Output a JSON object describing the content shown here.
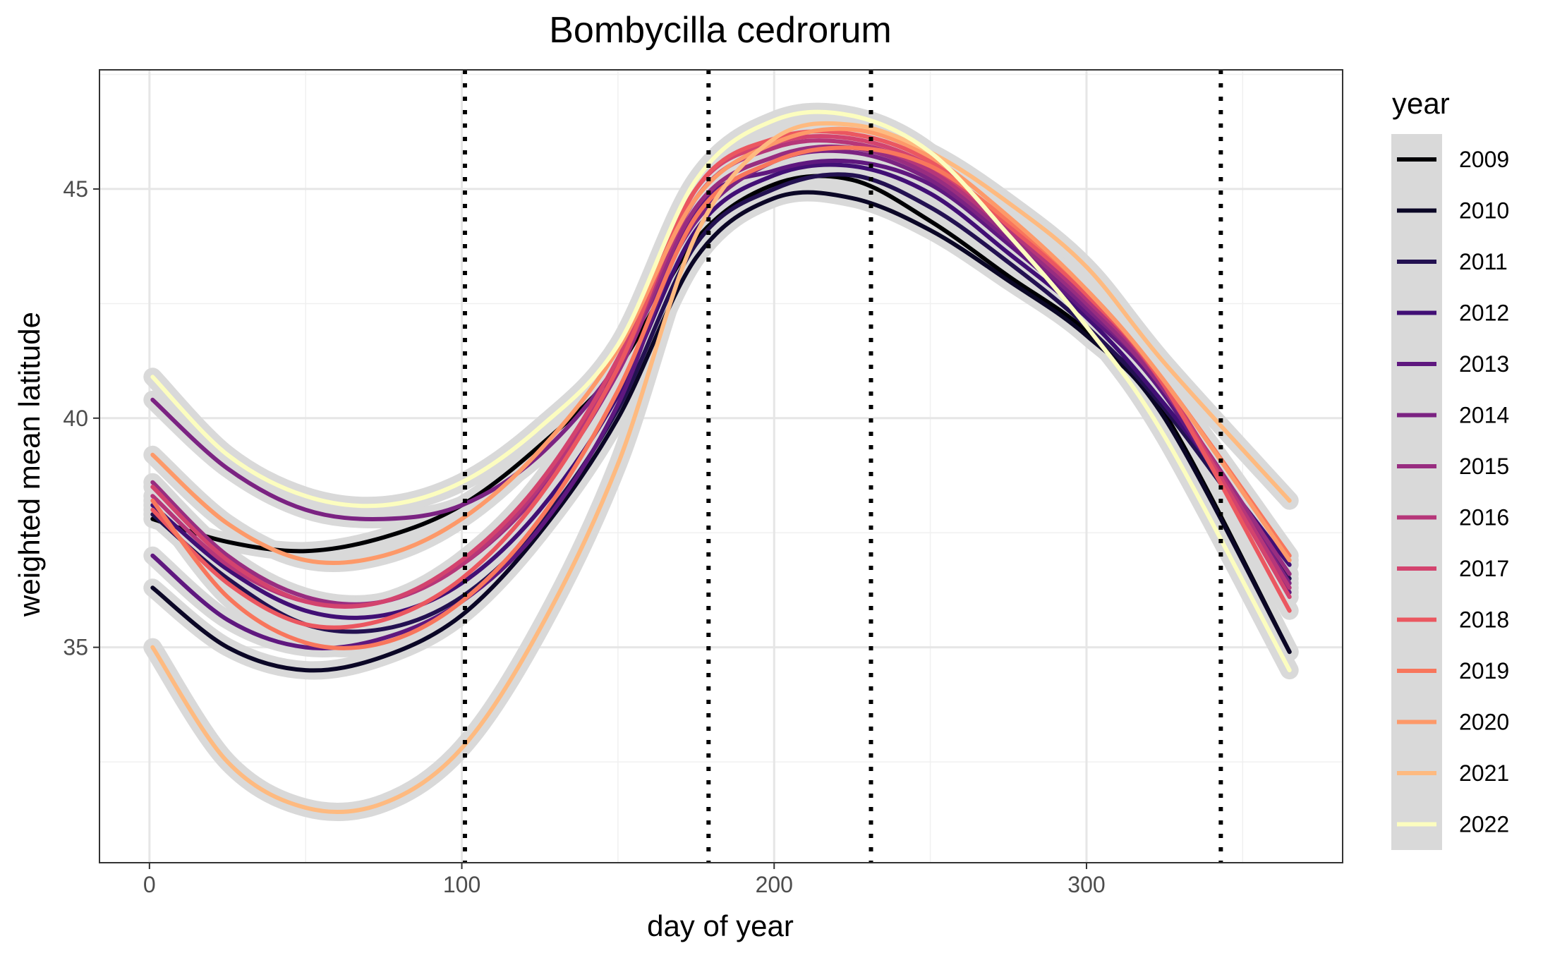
{
  "chart_data": {
    "type": "line",
    "title": "Bombycilla cedrorum",
    "xlabel": "day of year",
    "ylabel": "weighted mean latitude",
    "xlim": [
      -16,
      382
    ],
    "ylim": [
      30.3,
      47.6
    ],
    "xticks": [
      0,
      100,
      200,
      300
    ],
    "yticks": [
      35,
      40,
      45
    ],
    "grid": true,
    "vlines": [
      101,
      179,
      231,
      343
    ],
    "legend": {
      "title": "year",
      "position": "right"
    },
    "ci_band_color": "#d9d9d9",
    "series": [
      {
        "name": "2009",
        "color": "#000004",
        "x": [
          1,
          25,
          50,
          75,
          100,
          125,
          150,
          175,
          200,
          225,
          250,
          275,
          300,
          325,
          365
        ],
        "y": [
          37.8,
          37.3,
          37.1,
          37.4,
          38.1,
          39.4,
          41.1,
          43.9,
          45.1,
          45.2,
          44.3,
          43.1,
          41.9,
          40.1,
          34.9
        ]
      },
      {
        "name": "2010",
        "color": "#0B0726",
        "x": [
          1,
          25,
          50,
          75,
          100,
          125,
          150,
          175,
          200,
          225,
          250,
          275,
          300,
          325,
          365
        ],
        "y": [
          36.3,
          35.0,
          34.5,
          34.8,
          35.7,
          37.5,
          40.0,
          43.5,
          44.8,
          44.8,
          44.1,
          43.0,
          41.8,
          40.0,
          34.9
        ]
      },
      {
        "name": "2011",
        "color": "#231151",
        "x": [
          1,
          25,
          50,
          75,
          100,
          125,
          150,
          175,
          200,
          225,
          250,
          275,
          300,
          325,
          365
        ],
        "y": [
          37.9,
          36.5,
          35.5,
          35.4,
          36.1,
          37.7,
          40.2,
          43.8,
          45.0,
          45.3,
          44.6,
          43.4,
          42.0,
          40.2,
          36.5
        ]
      },
      {
        "name": "2012",
        "color": "#410F75",
        "x": [
          1,
          25,
          50,
          75,
          100,
          125,
          150,
          175,
          200,
          225,
          250,
          275,
          300,
          325,
          365
        ],
        "y": [
          38.1,
          36.7,
          35.8,
          35.7,
          36.4,
          38.0,
          40.5,
          44.1,
          45.3,
          45.5,
          44.9,
          43.6,
          42.2,
          40.3,
          36.8
        ]
      },
      {
        "name": "2013",
        "color": "#5F187F",
        "x": [
          1,
          25,
          50,
          75,
          100,
          125,
          150,
          175,
          200,
          225,
          250,
          275,
          300,
          325,
          365
        ],
        "y": [
          37.0,
          35.6,
          35.0,
          35.2,
          36.0,
          37.6,
          40.3,
          44.5,
          45.4,
          45.6,
          45.1,
          43.8,
          42.3,
          40.5,
          36.2
        ]
      },
      {
        "name": "2014",
        "color": "#7B2382",
        "x": [
          1,
          25,
          50,
          75,
          100,
          125,
          150,
          175,
          200,
          225,
          250,
          275,
          300,
          325,
          365
        ],
        "y": [
          40.4,
          38.9,
          38.0,
          37.8,
          38.1,
          39.2,
          41.2,
          44.3,
          45.6,
          45.8,
          45.2,
          43.9,
          42.4,
          40.6,
          36.4
        ]
      },
      {
        "name": "2015",
        "color": "#982D80",
        "x": [
          1,
          25,
          50,
          75,
          100,
          125,
          150,
          175,
          200,
          225,
          250,
          275,
          300,
          325,
          365
        ],
        "y": [
          38.6,
          37.0,
          36.1,
          36.0,
          36.8,
          38.4,
          41.0,
          44.6,
          45.7,
          45.9,
          45.3,
          44.0,
          42.5,
          40.6,
          36.6
        ]
      },
      {
        "name": "2016",
        "color": "#B63679",
        "x": [
          1,
          25,
          50,
          75,
          100,
          125,
          150,
          175,
          200,
          225,
          250,
          275,
          300,
          325,
          365
        ],
        "y": [
          38.3,
          36.8,
          36.0,
          36.0,
          36.8,
          38.5,
          41.1,
          44.8,
          45.9,
          46.0,
          45.4,
          44.1,
          42.6,
          40.7,
          36.3
        ]
      },
      {
        "name": "2017",
        "color": "#D3436E",
        "x": [
          1,
          25,
          50,
          75,
          100,
          125,
          150,
          175,
          200,
          225,
          250,
          275,
          300,
          325,
          365
        ],
        "y": [
          38.5,
          36.9,
          36.0,
          36.0,
          36.9,
          38.6,
          41.3,
          45.0,
          46.0,
          46.1,
          45.5,
          44.2,
          42.7,
          40.7,
          36.1
        ]
      },
      {
        "name": "2018",
        "color": "#EB5760",
        "x": [
          1,
          25,
          50,
          75,
          100,
          125,
          150,
          175,
          200,
          225,
          250,
          275,
          300,
          325,
          365
        ],
        "y": [
          38.0,
          36.4,
          35.5,
          35.6,
          36.5,
          38.3,
          41.1,
          45.0,
          46.1,
          46.2,
          45.6,
          44.2,
          42.7,
          40.7,
          35.8
        ]
      },
      {
        "name": "2019",
        "color": "#F8765C",
        "x": [
          1,
          25,
          50,
          75,
          100,
          125,
          150,
          175,
          200,
          225,
          250,
          275,
          300,
          325,
          365
        ],
        "y": [
          38.2,
          36.1,
          35.1,
          35.1,
          36.0,
          37.8,
          40.6,
          44.4,
          45.6,
          45.9,
          45.5,
          44.3,
          42.8,
          40.8,
          37.0
        ]
      },
      {
        "name": "2020",
        "color": "#FD9969",
        "x": [
          1,
          25,
          50,
          75,
          100,
          125,
          150,
          175,
          200,
          225,
          250,
          275,
          300,
          325,
          365
        ],
        "y": [
          39.2,
          37.7,
          36.9,
          37.0,
          37.8,
          39.3,
          41.5,
          44.8,
          46.0,
          46.3,
          45.7,
          44.4,
          42.8,
          40.8,
          36.9
        ]
      },
      {
        "name": "2021",
        "color": "#FEBA80",
        "x": [
          1,
          25,
          50,
          75,
          100,
          125,
          150,
          175,
          200,
          225,
          250,
          275,
          300,
          325,
          365
        ],
        "y": [
          35.0,
          32.5,
          31.5,
          31.6,
          32.8,
          35.4,
          39.0,
          44.0,
          46.1,
          46.4,
          45.8,
          44.7,
          43.3,
          41.2,
          38.2
        ]
      },
      {
        "name": "2022",
        "color": "#FCFDBF",
        "x": [
          1,
          25,
          50,
          75,
          100,
          125,
          150,
          175,
          200,
          225,
          250,
          275,
          300,
          325,
          365
        ],
        "y": [
          40.9,
          39.2,
          38.3,
          38.1,
          38.6,
          39.8,
          41.6,
          45.2,
          46.5,
          46.6,
          45.8,
          44.0,
          42.0,
          39.6,
          34.5
        ]
      }
    ]
  }
}
